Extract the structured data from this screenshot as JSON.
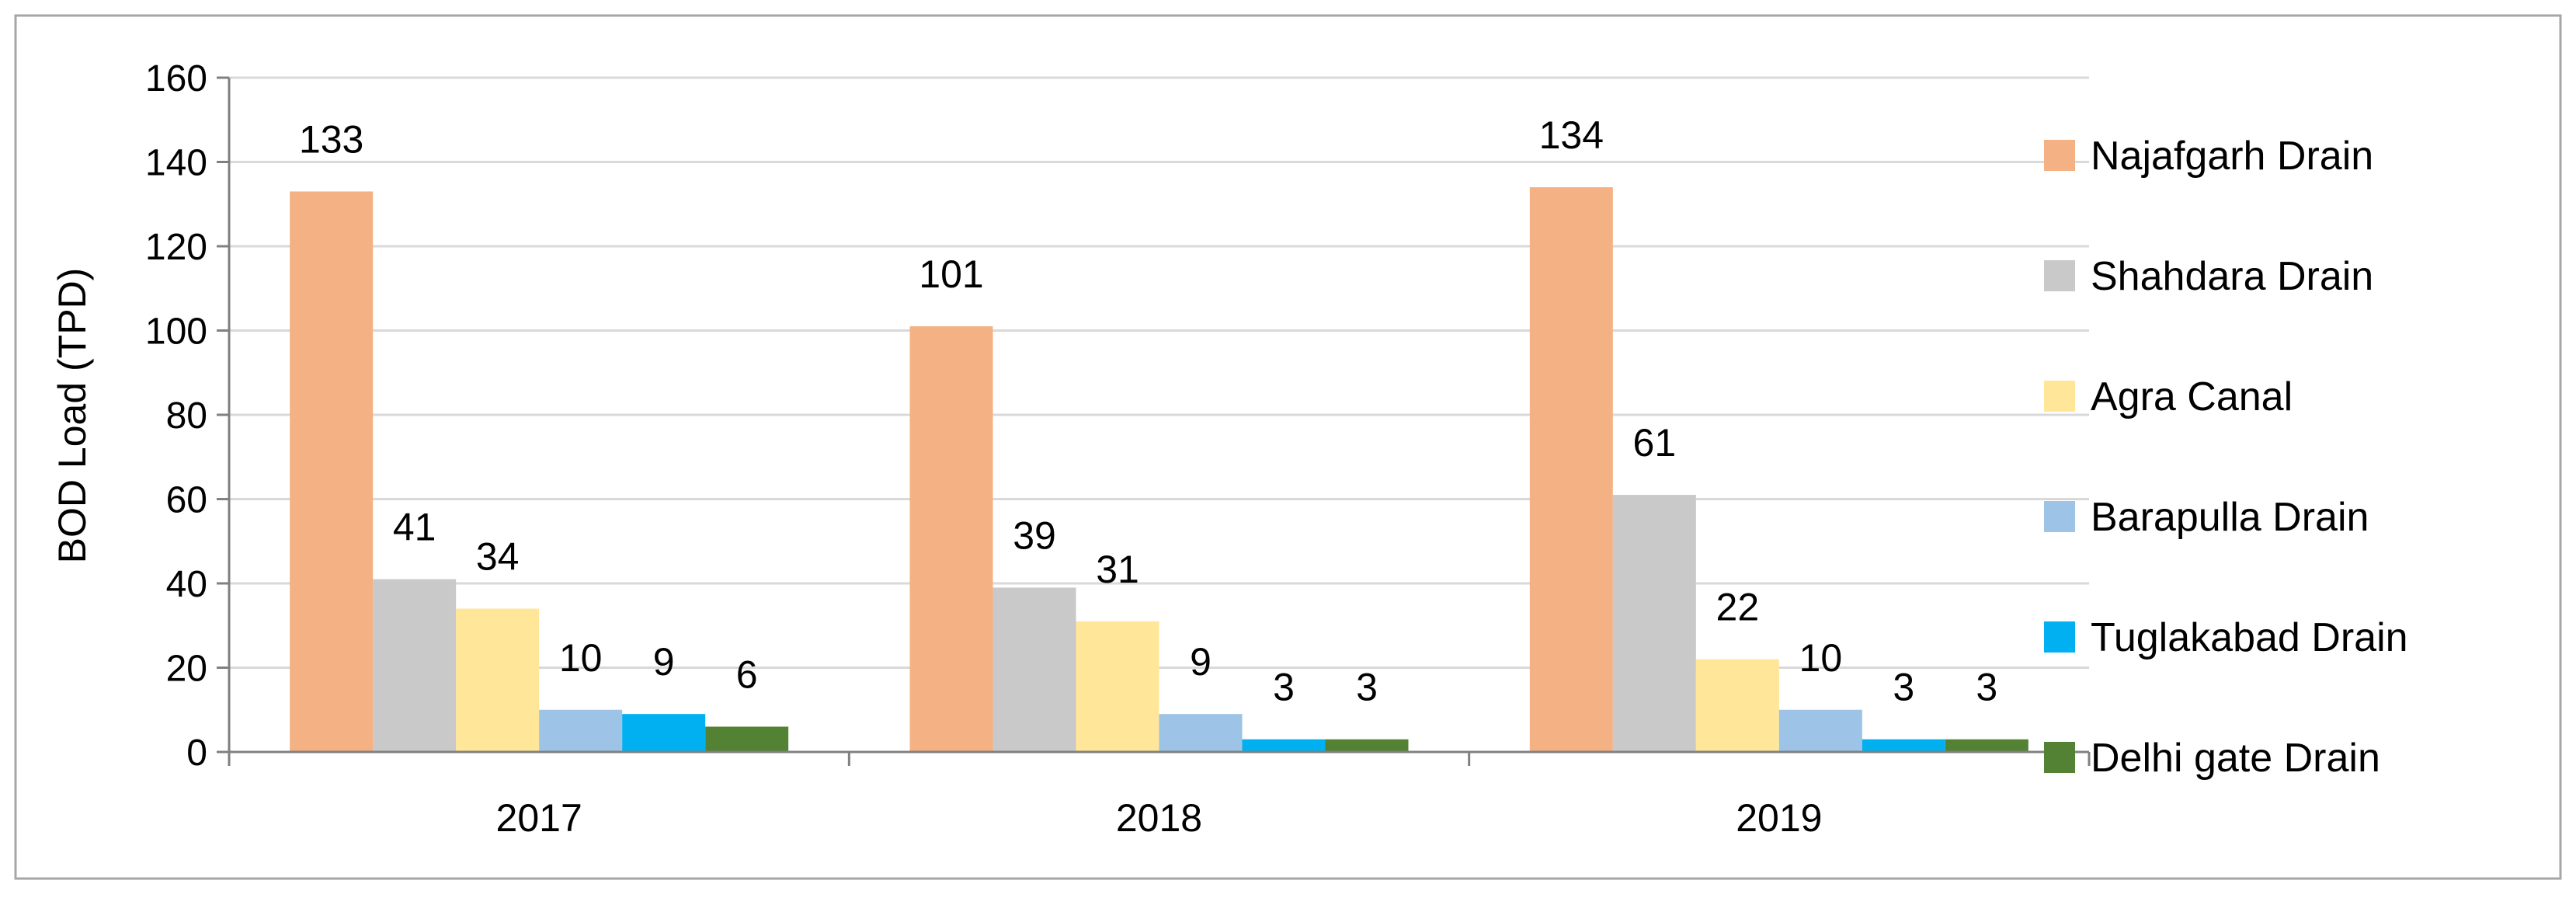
{
  "chart_data": {
    "type": "bar",
    "title": "",
    "xlabel": "",
    "ylabel": "BOD Load (TPD)",
    "ylim": [
      0,
      160
    ],
    "yticks": [
      0,
      20,
      40,
      60,
      80,
      100,
      120,
      140,
      160
    ],
    "grid": true,
    "legend_position": "right",
    "categories": [
      "2017",
      "2018",
      "2019"
    ],
    "series": [
      {
        "name": "Najafgarh Drain",
        "color": "#f4b183",
        "values": [
          133,
          101,
          134
        ]
      },
      {
        "name": "Shahdara Drain",
        "color": "#c9c9c9",
        "values": [
          41,
          39,
          61
        ]
      },
      {
        "name": "Agra Canal",
        "color": "#ffe699",
        "values": [
          34,
          31,
          22
        ]
      },
      {
        "name": "Barapulla Drain",
        "color": "#9dc3e6",
        "values": [
          10,
          9,
          10
        ]
      },
      {
        "name": "Tuglakabad Drain",
        "color": "#00b0f0",
        "values": [
          9,
          3,
          3
        ]
      },
      {
        "name": "Delhi gate Drain",
        "color": "#548235",
        "values": [
          6,
          3,
          3
        ]
      }
    ]
  }
}
